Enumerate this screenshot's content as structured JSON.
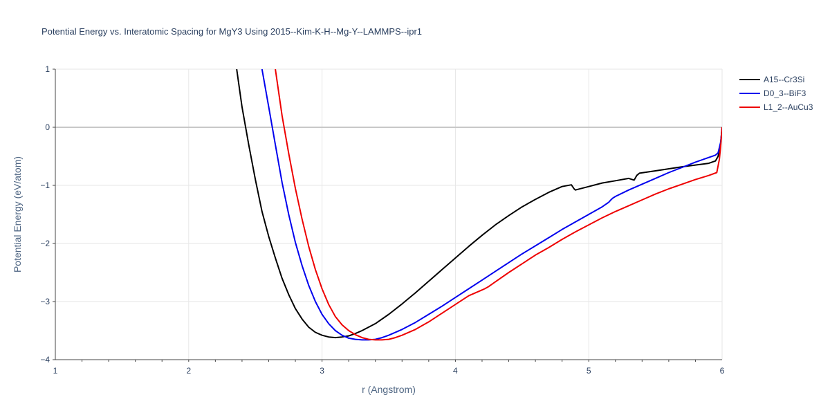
{
  "chart_data": {
    "type": "line",
    "title": "Potential Energy vs. Interatomic Spacing for MgY3 Using 2015--Kim-K-H--Mg-Y--LAMMPS--ipr1",
    "xlabel": "r (Angstrom)",
    "ylabel": "Potential Energy (eV/atom)",
    "xlim": [
      1,
      6
    ],
    "ylim": [
      -4,
      1
    ],
    "xticks": [
      "1",
      "2",
      "3",
      "4",
      "5",
      "6"
    ],
    "yticks": [
      "1",
      "0",
      "−1",
      "−2",
      "−3",
      "−4"
    ],
    "grid": true,
    "legend_position": "top-right",
    "series": [
      {
        "name": "A15--Cr3Si",
        "color": "#000000",
        "x": [
          2.36,
          2.4,
          2.45,
          2.5,
          2.55,
          2.6,
          2.65,
          2.7,
          2.75,
          2.8,
          2.85,
          2.9,
          2.95,
          3.0,
          3.05,
          3.1,
          3.15,
          3.2,
          3.25,
          3.3,
          3.4,
          3.5,
          3.6,
          3.7,
          3.8,
          3.9,
          4.0,
          4.1,
          4.2,
          4.3,
          4.4,
          4.5,
          4.6,
          4.7,
          4.8,
          4.87,
          4.89,
          4.9,
          5.0,
          5.1,
          5.2,
          5.3,
          5.34,
          5.36,
          5.38,
          5.5,
          5.7,
          5.9,
          5.95,
          5.97,
          5.99,
          6.0
        ],
        "values": [
          1.0,
          0.35,
          -0.3,
          -0.9,
          -1.45,
          -1.88,
          -2.25,
          -2.6,
          -2.88,
          -3.12,
          -3.3,
          -3.44,
          -3.53,
          -3.58,
          -3.61,
          -3.62,
          -3.61,
          -3.59,
          -3.55,
          -3.5,
          -3.38,
          -3.22,
          -3.04,
          -2.85,
          -2.65,
          -2.45,
          -2.25,
          -2.05,
          -1.86,
          -1.68,
          -1.52,
          -1.37,
          -1.24,
          -1.12,
          -1.02,
          -0.99,
          -1.06,
          -1.08,
          -1.02,
          -0.96,
          -0.92,
          -0.88,
          -0.91,
          -0.83,
          -0.79,
          -0.75,
          -0.68,
          -0.62,
          -0.58,
          -0.5,
          -0.25,
          0.0
        ]
      },
      {
        "name": "D0_3--BiF3",
        "color": "#0000ee",
        "x": [
          2.55,
          2.6,
          2.65,
          2.7,
          2.75,
          2.8,
          2.85,
          2.9,
          2.95,
          3.0,
          3.05,
          3.1,
          3.15,
          3.2,
          3.25,
          3.3,
          3.35,
          3.4,
          3.45,
          3.5,
          3.6,
          3.7,
          3.8,
          3.9,
          4.0,
          4.1,
          4.2,
          4.3,
          4.4,
          4.5,
          4.6,
          4.7,
          4.8,
          4.9,
          5.0,
          5.1,
          5.15,
          5.17,
          5.18,
          5.2,
          5.3,
          5.4,
          5.5,
          5.6,
          5.7,
          5.8,
          5.9,
          5.95,
          5.97,
          5.99,
          6.0
        ],
        "values": [
          1.0,
          0.35,
          -0.3,
          -0.95,
          -1.5,
          -1.98,
          -2.38,
          -2.72,
          -3.0,
          -3.22,
          -3.38,
          -3.5,
          -3.58,
          -3.63,
          -3.65,
          -3.66,
          -3.66,
          -3.65,
          -3.62,
          -3.58,
          -3.48,
          -3.36,
          -3.22,
          -3.08,
          -2.93,
          -2.78,
          -2.63,
          -2.48,
          -2.33,
          -2.18,
          -2.04,
          -1.9,
          -1.76,
          -1.63,
          -1.5,
          -1.37,
          -1.29,
          -1.24,
          -1.22,
          -1.19,
          -1.08,
          -0.98,
          -0.88,
          -0.78,
          -0.69,
          -0.6,
          -0.52,
          -0.48,
          -0.44,
          -0.25,
          0.0
        ]
      },
      {
        "name": "L1_2--AuCu3",
        "color": "#ee0000",
        "x": [
          2.65,
          2.7,
          2.75,
          2.8,
          2.85,
          2.9,
          2.95,
          3.0,
          3.05,
          3.1,
          3.15,
          3.2,
          3.25,
          3.3,
          3.35,
          3.4,
          3.45,
          3.5,
          3.55,
          3.6,
          3.7,
          3.8,
          3.9,
          4.0,
          4.1,
          4.2,
          4.22,
          4.25,
          4.3,
          4.4,
          4.5,
          4.6,
          4.7,
          4.8,
          4.9,
          5.0,
          5.1,
          5.2,
          5.3,
          5.4,
          5.5,
          5.6,
          5.7,
          5.8,
          5.9,
          5.96,
          5.98,
          5.99,
          6.0
        ],
        "values": [
          1.0,
          0.2,
          -0.45,
          -1.05,
          -1.58,
          -2.05,
          -2.45,
          -2.78,
          -3.05,
          -3.26,
          -3.4,
          -3.5,
          -3.57,
          -3.62,
          -3.65,
          -3.66,
          -3.66,
          -3.65,
          -3.62,
          -3.58,
          -3.48,
          -3.35,
          -3.2,
          -3.05,
          -2.9,
          -2.8,
          -2.78,
          -2.74,
          -2.66,
          -2.5,
          -2.35,
          -2.2,
          -2.07,
          -1.93,
          -1.8,
          -1.68,
          -1.56,
          -1.45,
          -1.35,
          -1.25,
          -1.15,
          -1.06,
          -0.98,
          -0.9,
          -0.83,
          -0.78,
          -0.55,
          -0.3,
          0.0
        ]
      }
    ]
  }
}
